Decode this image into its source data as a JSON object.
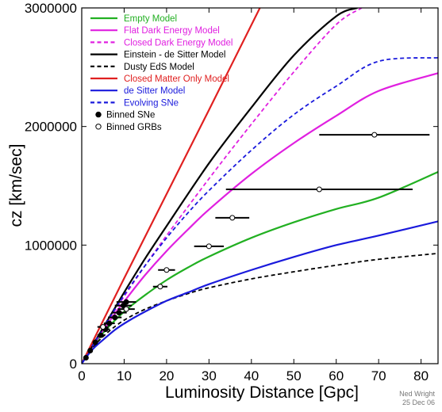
{
  "chart_data": {
    "type": "line",
    "xlabel": "Luminosity Distance [Gpc]",
    "ylabel": "cz [km/sec]",
    "xlim": [
      0,
      84
    ],
    "ylim": [
      0,
      3000000
    ],
    "xticks": [
      0,
      10,
      20,
      30,
      40,
      50,
      60,
      70,
      80
    ],
    "yticks": [
      0,
      1000000,
      2000000,
      3000000
    ],
    "grid": false,
    "legend_position": "top-left",
    "credit": [
      "Ned Wright",
      "25 Dec 06"
    ],
    "series": [
      {
        "name": "Empty Model",
        "color": "#22b022",
        "dash": "solid",
        "x": [
          0,
          0.5,
          1.5,
          3,
          5,
          8,
          11,
          15,
          20,
          25,
          30,
          40,
          50,
          60,
          70,
          84
        ],
        "y": [
          0,
          30000,
          87000,
          167000,
          258000,
          371000,
          469000,
          580000,
          705000,
          810000,
          903000,
          1061000,
          1192000,
          1304000,
          1400000,
          1617000
        ]
      },
      {
        "name": "Flat Dark Energy Model",
        "color": "#e020e0",
        "dash": "solid",
        "x": [
          0,
          0.5,
          1.5,
          3,
          5,
          8,
          11,
          15,
          20,
          25,
          30,
          40,
          50,
          60,
          70,
          84
        ],
        "y": [
          0,
          30000,
          88000,
          172000,
          280000,
          430000,
          570000,
          750000,
          950000,
          1130000,
          1300000,
          1600000,
          1860000,
          2090000,
          2300000,
          2450000
        ]
      },
      {
        "name": "Closed Dark Energy Model",
        "color": "#e020e0",
        "dash": "dashed",
        "x": [
          0,
          0.5,
          1.5,
          3,
          5,
          8,
          11,
          15,
          20,
          30,
          40,
          50,
          60,
          66
        ],
        "y": [
          0,
          30000,
          88000,
          175000,
          290000,
          460000,
          620000,
          830000,
          1080000,
          1560000,
          2020000,
          2460000,
          2860000,
          3000000
        ]
      },
      {
        "name": "Einstein - de Sitter Model",
        "color": "#000000",
        "dash": "solid",
        "x": [
          0,
          0.5,
          1.5,
          3,
          5,
          8,
          11,
          15,
          20,
          30,
          40,
          50,
          60,
          65
        ],
        "y": [
          0,
          30000,
          90000,
          180000,
          300000,
          480000,
          660000,
          890000,
          1160000,
          1690000,
          2160000,
          2600000,
          2930000,
          3000000
        ]
      },
      {
        "name": "Dusty EdS Model",
        "color": "#000000",
        "dash": "dashed",
        "x": [
          0,
          0.5,
          1.5,
          3,
          5,
          8,
          11,
          15,
          20,
          25,
          30,
          40,
          50,
          60,
          70,
          84
        ],
        "y": [
          0,
          28000,
          80000,
          150000,
          228000,
          318000,
          388000,
          460000,
          530000,
          590000,
          640000,
          715000,
          775000,
          830000,
          880000,
          930000
        ]
      },
      {
        "name": "Closed Matter Only Model",
        "color": "#e02020",
        "dash": "solid",
        "x": [
          0,
          5,
          10,
          20,
          30,
          42
        ],
        "y": [
          0,
          360000,
          720000,
          1430000,
          2140000,
          3000000
        ]
      },
      {
        "name": "de Sitter Model",
        "color": "#1a1adc",
        "dash": "solid",
        "x": [
          0,
          0.5,
          1.5,
          3,
          5,
          8,
          11,
          15,
          20,
          25,
          30,
          40,
          50,
          60,
          70,
          84
        ],
        "y": [
          0,
          28000,
          75000,
          137000,
          200000,
          290000,
          360000,
          440000,
          530000,
          600000,
          670000,
          790000,
          900000,
          1000000,
          1080000,
          1200000
        ]
      },
      {
        "name": "Evolving SNe",
        "color": "#1a1adc",
        "dash": "dashed",
        "x": [
          0,
          0.5,
          1.5,
          3,
          5,
          8,
          11,
          15,
          20,
          25,
          30,
          40,
          50,
          60,
          70,
          84
        ],
        "y": [
          0,
          30000,
          90000,
          178000,
          296000,
          470000,
          630000,
          830000,
          1060000,
          1270000,
          1460000,
          1800000,
          2100000,
          2340000,
          2550000,
          2580000
        ]
      }
    ],
    "points": [
      {
        "name": "Binned SNe",
        "marker": "filled-circle",
        "x": [
          1.0,
          2.0,
          3.2,
          4.5,
          5.6,
          6.5,
          7.8,
          8.8,
          9.8,
          10.5
        ],
        "y": [
          50000,
          110000,
          180000,
          240000,
          290000,
          340000,
          390000,
          430000,
          490000,
          520000
        ],
        "xerr": [
          0.2,
          0.4,
          0.6,
          0.8,
          1.0,
          1.3,
          1.6,
          1.8,
          2.0,
          2.3
        ]
      },
      {
        "name": "Binned GRBs",
        "marker": "open-circle",
        "x": [
          5,
          10.5,
          18.5,
          20,
          30,
          35.5,
          56,
          69
        ],
        "y": [
          310000,
          460000,
          650000,
          790000,
          990000,
          1230000,
          1470000,
          1930000
        ],
        "xerr": [
          1.3,
          2.0,
          1.7,
          2.0,
          3.5,
          4.0,
          22,
          13
        ]
      }
    ]
  }
}
